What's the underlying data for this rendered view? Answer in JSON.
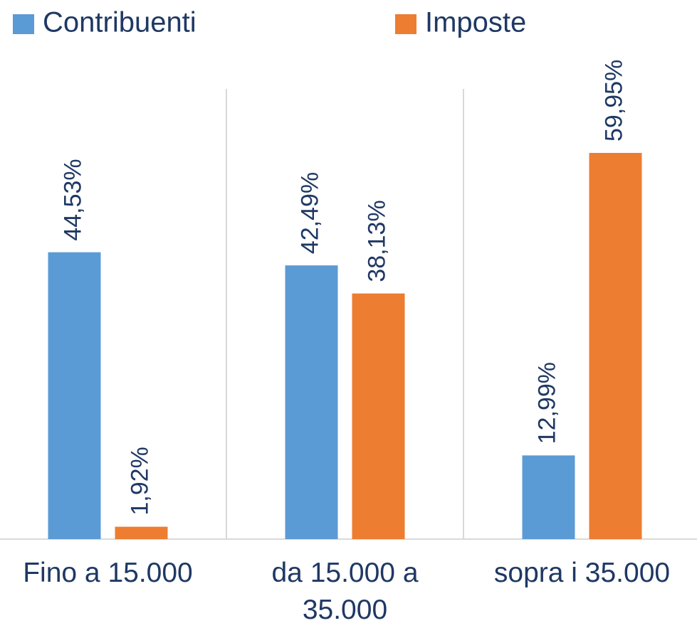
{
  "chart_data": {
    "type": "bar",
    "categories": [
      "Fino a 15.000",
      "da 15.000 a 35.000",
      "sopra i 35.000"
    ],
    "series": [
      {
        "name": "Contribuenti",
        "color": "#5b9bd5",
        "values": [
          44.53,
          42.49,
          12.99
        ],
        "value_labels": [
          "44,53%",
          "42,49%",
          "12,99%"
        ]
      },
      {
        "name": "Imposte",
        "color": "#ed7d31",
        "values": [
          1.92,
          38.13,
          59.95
        ],
        "value_labels": [
          "1,92%",
          "38,13%",
          "59,95%"
        ]
      }
    ]
  }
}
